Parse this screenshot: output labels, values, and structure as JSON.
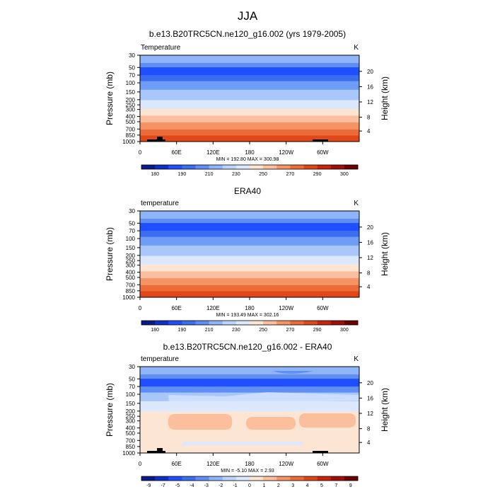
{
  "page_title": "JJA",
  "chart_data": [
    {
      "type": "heatmap",
      "title": "b.e13.B20TRC5CN.ne120_g16.002 (yrs 1979-2005)",
      "variable_label": "Temperature",
      "units": "K",
      "ylabel": "Pressure (mb)",
      "y2label": "Height (km)",
      "pressure_ticks": [
        "30",
        "50",
        "70",
        "100",
        "150",
        "200",
        "250",
        "300",
        "400",
        "500",
        "700",
        "850",
        "1000"
      ],
      "height_ticks": [
        "20",
        "16",
        "12",
        "8",
        "4"
      ],
      "x_ticks": [
        "0",
        "60E",
        "120E",
        "180",
        "120W",
        "60W"
      ],
      "stats": "MIN = 192.80  MAX = 300.98",
      "colorbar_labels": [
        "180",
        "190",
        "210",
        "230",
        "250",
        "270",
        "290",
        "300"
      ],
      "band_colors": [
        "#8fb4f8",
        "#5f8ef5",
        "#1f4fff",
        "#3a6df0",
        "#6f9cf5",
        "#a9c6fa",
        "#dbe8fd",
        "#fde5d3",
        "#fbbf9e",
        "#f59364",
        "#ec6b39",
        "#e0481a"
      ],
      "colorbar_colors": [
        "#0a1a8a",
        "#0f31c8",
        "#1f4fff",
        "#3a6df0",
        "#5f8ef5",
        "#8fb4f8",
        "#bcd4fb",
        "#dbe8fd",
        "#fde5d3",
        "#fbbf9e",
        "#f59364",
        "#ec6b39",
        "#e0481a",
        "#c8250a",
        "#a0100a",
        "#6a0000"
      ]
    },
    {
      "type": "heatmap",
      "title": "ERA40",
      "variable_label": "temperature",
      "units": "K",
      "ylabel": "Pressure (mb)",
      "y2label": "Height (km)",
      "pressure_ticks": [
        "30",
        "50",
        "70",
        "100",
        "150",
        "200",
        "250",
        "300",
        "400",
        "500",
        "700",
        "850",
        "1000"
      ],
      "height_ticks": [
        "20",
        "16",
        "12",
        "8",
        "4"
      ],
      "x_ticks": [
        "0",
        "60E",
        "120E",
        "180",
        "120W",
        "60W"
      ],
      "stats": "MIN = 193.49  MAX = 302.16",
      "colorbar_labels": [
        "180",
        "190",
        "210",
        "230",
        "250",
        "270",
        "290",
        "300"
      ],
      "band_colors": [
        "#8fb4f8",
        "#5f8ef5",
        "#1f4fff",
        "#3a6df0",
        "#6f9cf5",
        "#a9c6fa",
        "#dbe8fd",
        "#fde5d3",
        "#fbbf9e",
        "#f59364",
        "#ec6b39",
        "#e0481a"
      ],
      "colorbar_colors": [
        "#0a1a8a",
        "#0f31c8",
        "#1f4fff",
        "#3a6df0",
        "#5f8ef5",
        "#8fb4f8",
        "#bcd4fb",
        "#dbe8fd",
        "#fde5d3",
        "#fbbf9e",
        "#f59364",
        "#ec6b39",
        "#e0481a",
        "#c8250a",
        "#a0100a",
        "#6a0000"
      ]
    },
    {
      "type": "heatmap",
      "title": "b.e13.B20TRC5CN.ne120_g16.002 - ERA40",
      "variable_label": "temperature",
      "units": "K",
      "ylabel": "Pressure (mb)",
      "y2label": "Height (km)",
      "pressure_ticks": [
        "30",
        "50",
        "70",
        "100",
        "150",
        "200",
        "250",
        "300",
        "400",
        "500",
        "700",
        "850",
        "1000"
      ],
      "height_ticks": [
        "20",
        "16",
        "12",
        "8",
        "4"
      ],
      "x_ticks": [
        "0",
        "60E",
        "120E",
        "180",
        "120W",
        "60W"
      ],
      "stats": "MIN =  -5.10  MAX =   2.93",
      "colorbar_labels": [
        "-9",
        "-7",
        "-5",
        "-4",
        "-3",
        "-2",
        "-1",
        "0",
        "1",
        "2",
        "3",
        "4",
        "5",
        "7",
        "9"
      ],
      "band_colors": [
        "#8fb4f8",
        "#5f8ef5",
        "#1f4fff",
        "#5f8ef5",
        "#a9c6fa",
        "#dbe8fd",
        "#fde5d3",
        "#fde5d3",
        "#fde5d3",
        "#fde5d3",
        "#fde5d3",
        "#fde5d3"
      ],
      "colorbar_colors": [
        "#0a1a8a",
        "#0f31c8",
        "#1f4fff",
        "#3a6df0",
        "#5f8ef5",
        "#8fb4f8",
        "#bcd4fb",
        "#dbe8fd",
        "#fde5d3",
        "#fbbf9e",
        "#f59364",
        "#ec6b39",
        "#e0481a",
        "#c8250a",
        "#a0100a",
        "#6a0000"
      ]
    }
  ]
}
